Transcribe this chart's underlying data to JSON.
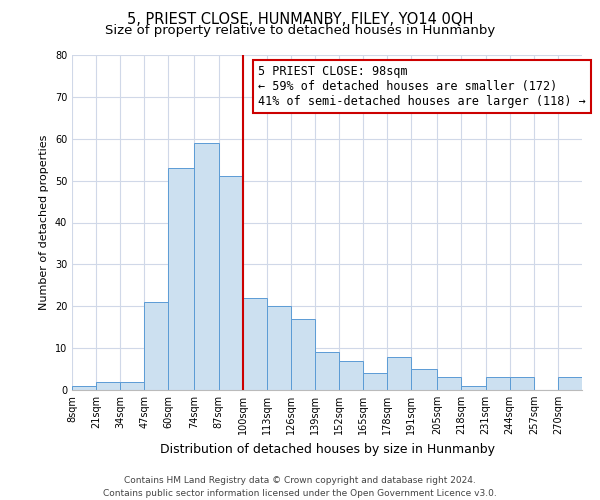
{
  "title": "5, PRIEST CLOSE, HUNMANBY, FILEY, YO14 0QH",
  "subtitle": "Size of property relative to detached houses in Hunmanby",
  "xlabel": "Distribution of detached houses by size in Hunmanby",
  "ylabel": "Number of detached properties",
  "bar_labels": [
    "8sqm",
    "21sqm",
    "34sqm",
    "47sqm",
    "60sqm",
    "74sqm",
    "87sqm",
    "100sqm",
    "113sqm",
    "126sqm",
    "139sqm",
    "152sqm",
    "165sqm",
    "178sqm",
    "191sqm",
    "205sqm",
    "218sqm",
    "231sqm",
    "244sqm",
    "257sqm",
    "270sqm"
  ],
  "bar_values": [
    1,
    2,
    2,
    21,
    53,
    59,
    51,
    22,
    20,
    17,
    9,
    7,
    4,
    8,
    5,
    3,
    1,
    3,
    3,
    0,
    3
  ],
  "bin_edges": [
    8,
    21,
    34,
    47,
    60,
    74,
    87,
    100,
    113,
    126,
    139,
    152,
    165,
    178,
    191,
    205,
    218,
    231,
    244,
    257,
    270,
    283
  ],
  "bar_color": "#cce0f0",
  "bar_edge_color": "#5b9bd5",
  "vline_x": 100,
  "vline_color": "#cc0000",
  "annotation_line1": "5 PRIEST CLOSE: 98sqm",
  "annotation_line2": "← 59% of detached houses are smaller (172)",
  "annotation_line3": "41% of semi-detached houses are larger (118) →",
  "annotation_box_color": "#ffffff",
  "annotation_box_edge_color": "#cc0000",
  "ylim": [
    0,
    80
  ],
  "yticks": [
    0,
    10,
    20,
    30,
    40,
    50,
    60,
    70,
    80
  ],
  "footnote": "Contains HM Land Registry data © Crown copyright and database right 2024.\nContains public sector information licensed under the Open Government Licence v3.0.",
  "bg_color": "#ffffff",
  "grid_color": "#d0d8e8",
  "title_fontsize": 10.5,
  "subtitle_fontsize": 9.5,
  "xlabel_fontsize": 9,
  "ylabel_fontsize": 8,
  "tick_fontsize": 7,
  "annotation_fontsize": 8.5,
  "footnote_fontsize": 6.5
}
